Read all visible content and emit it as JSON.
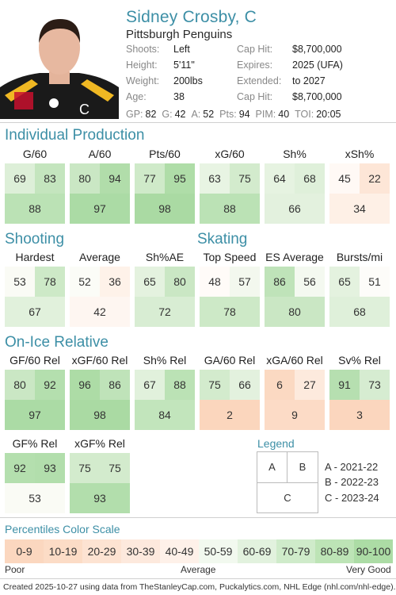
{
  "player": {
    "name": "Sidney Crosby, C",
    "team": "Pittsburgh Penguins",
    "info": [
      {
        "k": "Shoots:",
        "v": "Left",
        "k2": "Cap Hit:",
        "v2": "$8,700,000"
      },
      {
        "k": "Height:",
        "v": "5'11\"",
        "k2": "Expires:",
        "v2": "2025 (UFA)"
      },
      {
        "k": "Weight:",
        "v": "200lbs",
        "k2": "Extended:",
        "v2": "to 2027"
      },
      {
        "k": "Age:",
        "v": "38",
        "k2": "Cap Hit:",
        "v2": "$8,700,000"
      }
    ],
    "statline": [
      {
        "k": "GP:",
        "v": "82"
      },
      {
        "k": "G:",
        "v": "42"
      },
      {
        "k": "A:",
        "v": "52"
      },
      {
        "k": "Pts:",
        "v": "94"
      },
      {
        "k": "PIM:",
        "v": "40"
      },
      {
        "k": "TOI:",
        "v": "20:05"
      }
    ]
  },
  "sections": {
    "individual": "Individual Production",
    "shooting": "Shooting",
    "skating": "Skating",
    "onice": "On-Ice Relative",
    "legend": "Legend",
    "scale": "Percentiles Color Scale"
  },
  "groups": [
    {
      "label": "G/60",
      "a": 69,
      "b": 83,
      "c": 88
    },
    {
      "label": "A/60",
      "a": 80,
      "b": 94,
      "c": 97
    },
    {
      "label": "Pts/60",
      "a": 77,
      "b": 95,
      "c": 98
    },
    {
      "label": "xG/60",
      "a": 63,
      "b": 75,
      "c": 88
    },
    {
      "label": "Sh%",
      "a": 64,
      "b": 68,
      "c": 66
    },
    {
      "label": "xSh%",
      "a": 45,
      "b": 22,
      "c": 34
    },
    {
      "label": "Hardest",
      "a": 53,
      "b": 78,
      "c": 67
    },
    {
      "label": "Average",
      "a": 52,
      "b": 36,
      "c": 42
    },
    {
      "label": "Sh%AE",
      "a": 65,
      "b": 80,
      "c": 72
    },
    {
      "label": "Top Speed",
      "a": 48,
      "b": 57,
      "c": 78
    },
    {
      "label": "ES Average",
      "a": 86,
      "b": 56,
      "c": 80
    },
    {
      "label": "Bursts/mi",
      "a": 65,
      "b": 51,
      "c": 68
    },
    {
      "label": "GF/60 Rel",
      "a": 80,
      "b": 92,
      "c": 97
    },
    {
      "label": "xGF/60 Rel",
      "a": 96,
      "b": 86,
      "c": 98
    },
    {
      "label": "Sh% Rel",
      "a": 67,
      "b": 88,
      "c": 84
    },
    {
      "label": "GA/60 Rel",
      "a": 75,
      "b": 66,
      "c": 2
    },
    {
      "label": "xGA/60 Rel",
      "a": 6,
      "b": 27,
      "c": 9
    },
    {
      "label": "Sv% Rel",
      "a": 91,
      "b": 73,
      "c": 3
    },
    {
      "label": "GF% Rel",
      "a": 92,
      "b": 93,
      "c": 53
    },
    {
      "label": "xGF% Rel",
      "a": 75,
      "b": 75,
      "c": 93
    }
  ],
  "legend": {
    "A": "A",
    "B": "B",
    "C": "C",
    "lines": [
      "A - 2021-22",
      "B - 2022-23",
      "C - 2023-24"
    ]
  },
  "scale": {
    "bins": [
      "0-9",
      "10-19",
      "20-29",
      "30-39",
      "40-49",
      "50-59",
      "60-69",
      "70-79",
      "80-89",
      "90-100"
    ],
    "colors": [
      "#fbd7bf",
      "#fcdcc6",
      "#fde3d2",
      "#fde9dd",
      "#fef1e9",
      "#f2f9ef",
      "#e2f2de",
      "#cfebca",
      "#bde4b6",
      "#acdca5"
    ],
    "poor": "Poor",
    "average": "Average",
    "good": "Very Good"
  },
  "footer": "Created 2025-10-27 using data from TheStanleyCap.com, Puckalytics.com, NHL Edge (nhl.com/nhl-edge)."
}
